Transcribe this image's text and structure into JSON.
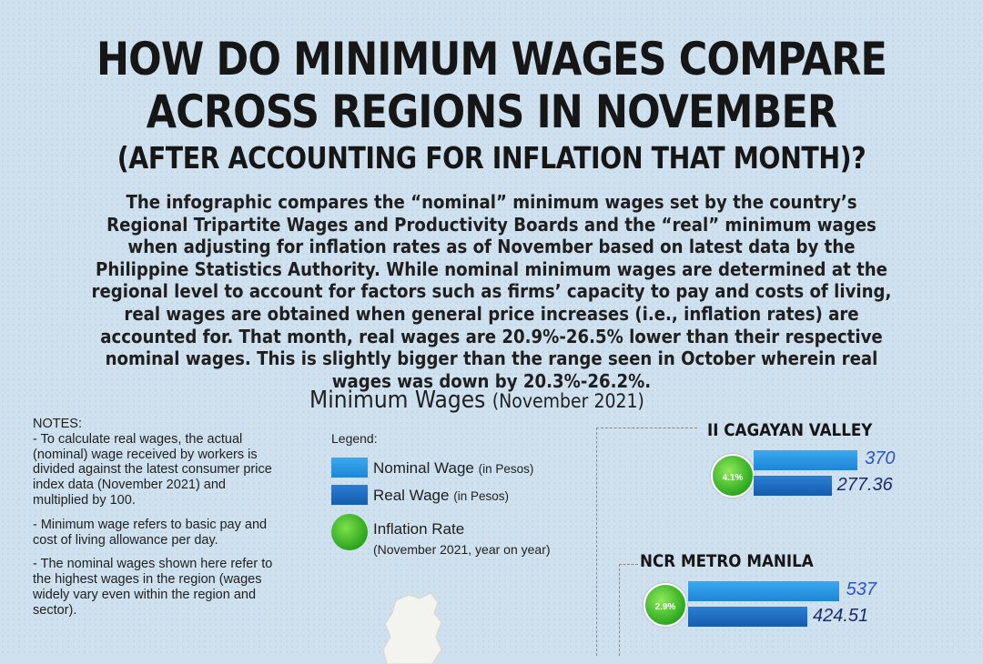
{
  "title_line1": "HOW DO MINIMUM WAGES COMPARE",
  "title_line2": "ACROSS REGIONS IN NOVEMBER",
  "title_line3": "(AFTER ACCOUNTING FOR INFLATION THAT MONTH)?",
  "intro": "The infographic compares the “nominal” minimum wages set by the country’s Regional Tripartite Wages and Productivity Boards and the “real” minimum wages when adjusting for inflation rates as of November based on latest data by the Philippine Statistics Authority. While nominal minimum wages are determined at the regional level to account for factors such as firms’ capacity to pay and costs of living, real wages are obtained when general price increases (i.e., inflation rates) are accounted for. That month, real wages are 20.9%-26.5% lower than their respective nominal wages. This is slightly bigger than the range seen in October wherein real wages was down by 20.3%-26.2%.",
  "notes": {
    "heading": "NOTES:",
    "items": [
      "- To calculate real wages, the actual (nominal) wage received by workers is divided against the latest consumer price index data (November 2021) and multiplied by 100.",
      "- Minimum wage refers to basic pay and cost of living allowance per day.",
      "- The nominal wages shown here refer to the highest wages in the region (wages widely vary even within the region and sector)."
    ]
  },
  "legend": {
    "title": "Legend:",
    "nominal": "Nominal Wage",
    "nominal_unit": "(in Pesos)",
    "real": "Real Wage",
    "real_unit": "(in Pesos)",
    "inflation": "Inflation Rate",
    "inflation_sub": "(November 2021, year on year)"
  },
  "colors": {
    "nominal": "#2196e8",
    "real": "#1a6cc2",
    "inflation": "#2fa822"
  },
  "chart_data": {
    "type": "bar",
    "title": "Minimum Wages",
    "subtitle": "(November 2021)",
    "categories": [
      "II CAGAYAN VALLEY",
      "NCR METRO MANILA"
    ],
    "series": [
      {
        "name": "Nominal Wage",
        "values": [
          370,
          537
        ],
        "labels": [
          "370",
          "537"
        ]
      },
      {
        "name": "Real Wage",
        "values": [
          277.36,
          424.51
        ],
        "labels": [
          "277.36",
          "424.51"
        ]
      }
    ],
    "inflation": [
      4.1,
      2.9
    ],
    "inflation_labels": [
      "4.1",
      "2.9"
    ],
    "inflation_unit": "%"
  }
}
